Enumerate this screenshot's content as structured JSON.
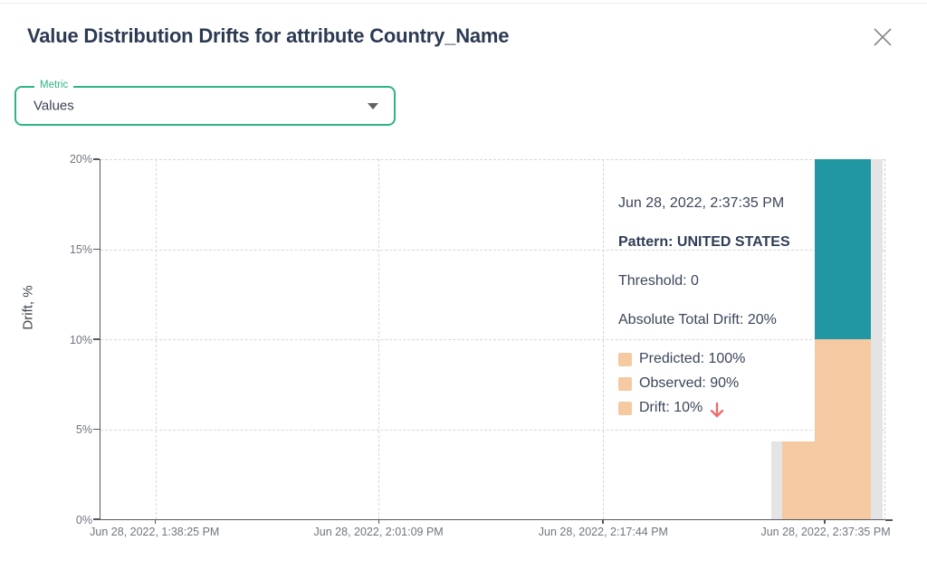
{
  "header": {
    "title": "Value Distribution Drifts for attribute Country_Name"
  },
  "metric_select": {
    "label": "Metric",
    "value": "Values"
  },
  "tooltip": {
    "timestamp": "Jun 28, 2022, 2:37:35 PM",
    "pattern": "Pattern: UNITED STATES",
    "threshold": "Threshold: 0",
    "absolute_total_drift": "Absolute Total Drift: 20%",
    "legend": [
      {
        "label": "Predicted: 100%",
        "arrow": false
      },
      {
        "label": "Observed: 90%",
        "arrow": false
      },
      {
        "label": "Drift: 10%",
        "arrow": true
      }
    ]
  },
  "chart_data": {
    "type": "bar",
    "title": "",
    "xlabel": "",
    "ylabel": "Drift, %",
    "ylim": [
      0,
      20
    ],
    "yticks": [
      0,
      5,
      10,
      15,
      20
    ],
    "ytick_suffix": "%",
    "grid": true,
    "legend_position": "none",
    "categories": [
      "Jun 28, 2022, 1:38:25 PM",
      "Jun 28, 2022, 2:01:09 PM",
      "Jun 28, 2022, 2:17:44 PM",
      "Jun 28, 2022, 2:37:35 PM"
    ],
    "category_x_pct": [
      7.0,
      35.5,
      64.1,
      92.4
    ],
    "series_note": "Only the last timestamp has visible bars; hovered pattern UNITED STATES totals 20% drift (10% + 10%), neighbouring bar ~4.3%, gray hover-shadow strips beside them",
    "bars": [
      {
        "name": "hover-shadow-small-bar",
        "hover_shadow": true,
        "left_pct": 85.6,
        "width_pct": 1.4,
        "segments": [
          {
            "from": 0,
            "to": 4.3,
            "color": "#e4e4e5"
          }
        ]
      },
      {
        "name": "adjacent-pattern-bar",
        "hover_shadow": false,
        "left_pct": 87.0,
        "width_pct": 4.15,
        "segments": [
          {
            "from": 0,
            "to": 4.3,
            "color": "#f5c9a1"
          }
        ]
      },
      {
        "name": "united-states-drift-bar",
        "hover_shadow": false,
        "left_pct": 91.15,
        "width_pct": 7.1,
        "segments": [
          {
            "from": 0,
            "to": 10,
            "color": "#f5c9a1"
          },
          {
            "from": 10,
            "to": 20,
            "color": "#2097a3"
          }
        ]
      },
      {
        "name": "hover-shadow-tall-bar",
        "hover_shadow": true,
        "left_pct": 98.25,
        "width_pct": 1.5,
        "segments": [
          {
            "from": 0,
            "to": 20,
            "color": "#e4e4e5"
          }
        ]
      }
    ]
  },
  "colors": {
    "accent_green": "#2fb487",
    "teal": "#2097a3",
    "peach": "#f5c9a1",
    "shadow_gray": "#e4e4e5",
    "arrow_red": "#ec6e6e",
    "title_navy": "#2c3a52"
  }
}
